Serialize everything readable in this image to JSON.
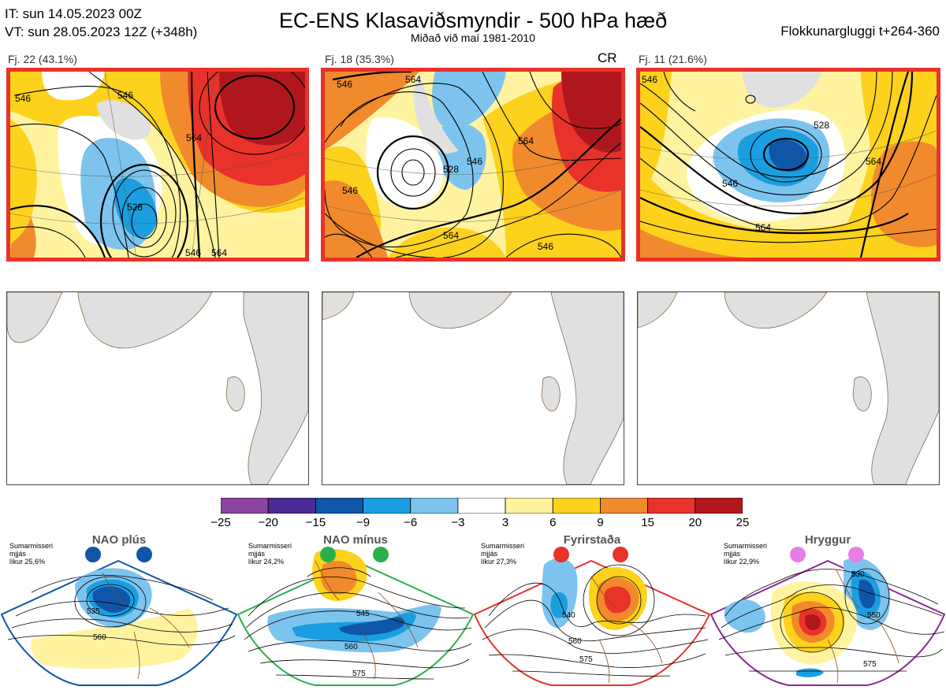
{
  "header": {
    "it_line": "IT: sun 14.05.2023 00Z",
    "vt_line": "VT: sun 28.05.2023 12Z  (+348h)",
    "title": "EC-ENS Klasaviðsmyndir - 500 hPa hæð",
    "subtitle": "Miðað við maí 1981-2010",
    "window": "Flokkunargluggi t+264-360"
  },
  "panels": [
    {
      "label": "Fj. 22 (43.1%)",
      "tag": "",
      "contour_labels": [
        "546",
        "546",
        "564",
        "528",
        "546",
        "564"
      ]
    },
    {
      "label": "Fj. 18 (35.3%)",
      "tag": "CR",
      "contour_labels": [
        "546",
        "564",
        "528",
        "546",
        "546",
        "564",
        "564",
        "546"
      ]
    },
    {
      "label": "Fj. 11 (21.6%)",
      "tag": "",
      "contour_labels": [
        "546",
        "528",
        "546",
        "564",
        "564"
      ]
    }
  ],
  "colorbar": {
    "ticks": [
      "−25",
      "−20",
      "−15",
      "−9",
      "−6",
      "−3",
      "3",
      "6",
      "9",
      "15",
      "20",
      "25"
    ],
    "colors": [
      "#8b44a0",
      "#4b2a94",
      "#0f55a8",
      "#1a9ee0",
      "#7cc4ee",
      "#ffffff",
      "#fff3a0",
      "#fcd21c",
      "#f08a2c",
      "#e8322a",
      "#b0171d"
    ]
  },
  "regimes": [
    {
      "title": "NAO plús",
      "note": [
        "Sumarmisseri",
        "mjjás",
        "líkur 25,6%"
      ],
      "color": "#0f55a8",
      "contours": [
        "535",
        "560"
      ]
    },
    {
      "title": "NAO mínus",
      "note": [
        "Sumarmisseri",
        "mjjás",
        "líkur 24,2%"
      ],
      "color": "#2ab04a",
      "contours": [
        "545",
        "560",
        "575"
      ]
    },
    {
      "title": "Fyrirstaða",
      "note": [
        "Sumarmisseri",
        "mjjás",
        "líkur 27,3%"
      ],
      "color": "#e8322a",
      "contours": [
        "540",
        "560",
        "575"
      ]
    },
    {
      "title": "Hryggur",
      "note": [
        "Sumarmisseri",
        "mjjás",
        "líkur 22,9%"
      ],
      "color": "#e77ee6",
      "contours": [
        "530",
        "550",
        "575"
      ]
    }
  ]
}
